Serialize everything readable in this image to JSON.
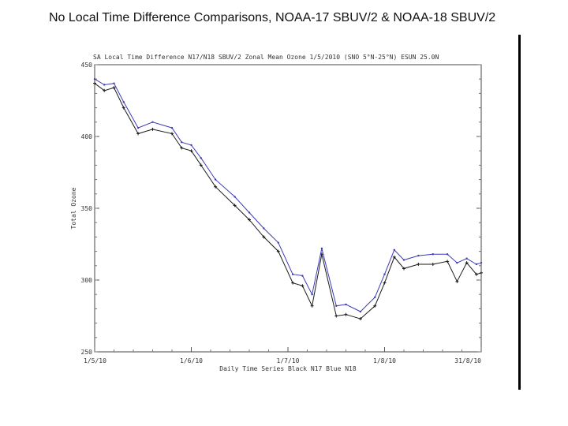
{
  "slide": {
    "title": "No Local Time Difference Comparisons, NOAA-17 SBUV/2 & NOAA-18 SBUV/2"
  },
  "chart_data": {
    "type": "line",
    "title": "SA Local Time Difference N17/N18 SBUV/2 Zonal Mean Ozone 1/5/2010 (SNO 5°N-25°N) ESUN 25.0N",
    "xlabel": "Daily Time Series  Black N17  Blue N18",
    "ylabel": "Total Ozone",
    "x_tick_labels": [
      "1/5/10",
      "1/6/10",
      "1/7/10",
      "1/8/10",
      "31/8/10"
    ],
    "y_tick_labels": [
      "450",
      "400",
      "350",
      "300",
      "250"
    ],
    "xlim": [
      0,
      4
    ],
    "ylim": [
      250,
      450
    ],
    "grid": false,
    "series": [
      {
        "name": "Black N17",
        "color": "#1a1a1a",
        "x": [
          0,
          0.1,
          0.2,
          0.3,
          0.45,
          0.6,
          0.8,
          0.9,
          1.0,
          1.1,
          1.25,
          1.45,
          1.6,
          1.75,
          1.9,
          2.05,
          2.15,
          2.25,
          2.35,
          2.5,
          2.6,
          2.75,
          2.9,
          3.0,
          3.1,
          3.2,
          3.35,
          3.5,
          3.65,
          3.75,
          3.85,
          3.95,
          4.0
        ],
        "values": [
          437,
          432,
          434,
          420,
          402,
          405,
          402,
          392,
          390,
          380,
          365,
          352,
          342,
          330,
          320,
          298,
          296,
          282,
          318,
          275,
          276,
          273,
          282,
          298,
          316,
          308,
          311,
          311,
          313,
          299,
          312,
          304,
          305
        ]
      },
      {
        "name": "Blue N18",
        "color": "#3b3bb8",
        "x": [
          0,
          0.1,
          0.2,
          0.3,
          0.45,
          0.6,
          0.8,
          0.9,
          1.0,
          1.1,
          1.25,
          1.45,
          1.6,
          1.75,
          1.9,
          2.05,
          2.15,
          2.25,
          2.35,
          2.5,
          2.6,
          2.75,
          2.9,
          3.0,
          3.1,
          3.2,
          3.35,
          3.5,
          3.65,
          3.75,
          3.85,
          3.95,
          4.0
        ],
        "values": [
          440,
          436,
          437,
          424,
          406,
          410,
          406,
          396,
          394,
          385,
          370,
          358,
          347,
          336,
          326,
          304,
          303,
          290,
          322,
          282,
          283,
          278,
          288,
          304,
          321,
          314,
          317,
          318,
          318,
          312,
          315,
          311,
          312
        ]
      }
    ]
  }
}
